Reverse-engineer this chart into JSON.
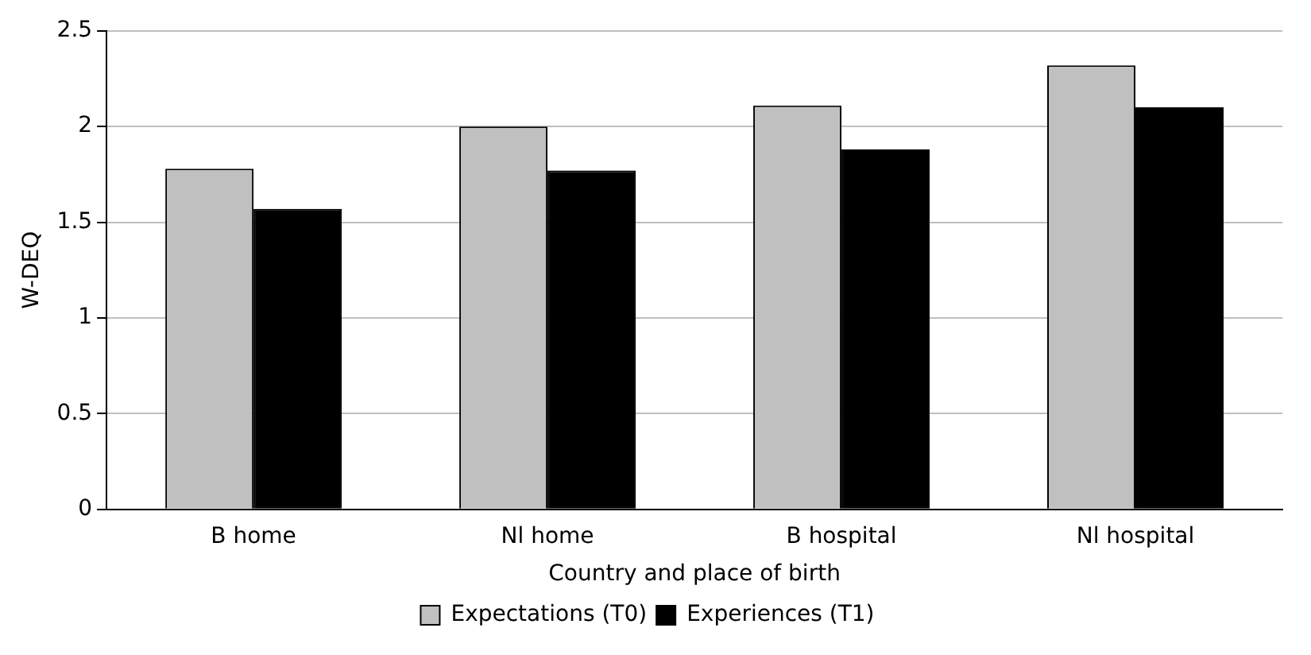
{
  "chart_data": {
    "type": "bar",
    "xlabel": "Country and place of birth",
    "ylabel": "W-DEQ",
    "categories": [
      "B home",
      "Nl home",
      "B hospital",
      "Nl hospital"
    ],
    "series": [
      {
        "name": "Expectations (T0)",
        "color": "#c0c0c0",
        "values": [
          1.78,
          2.0,
          2.11,
          2.32
        ]
      },
      {
        "name": "Experiences (T1)",
        "color": "#000000",
        "values": [
          1.57,
          1.77,
          1.88,
          2.1
        ]
      }
    ],
    "ylim": [
      0,
      2.5
    ],
    "yticks": [
      0,
      0.5,
      1,
      1.5,
      2,
      2.5
    ],
    "grid": "y",
    "legend": "bottom"
  }
}
